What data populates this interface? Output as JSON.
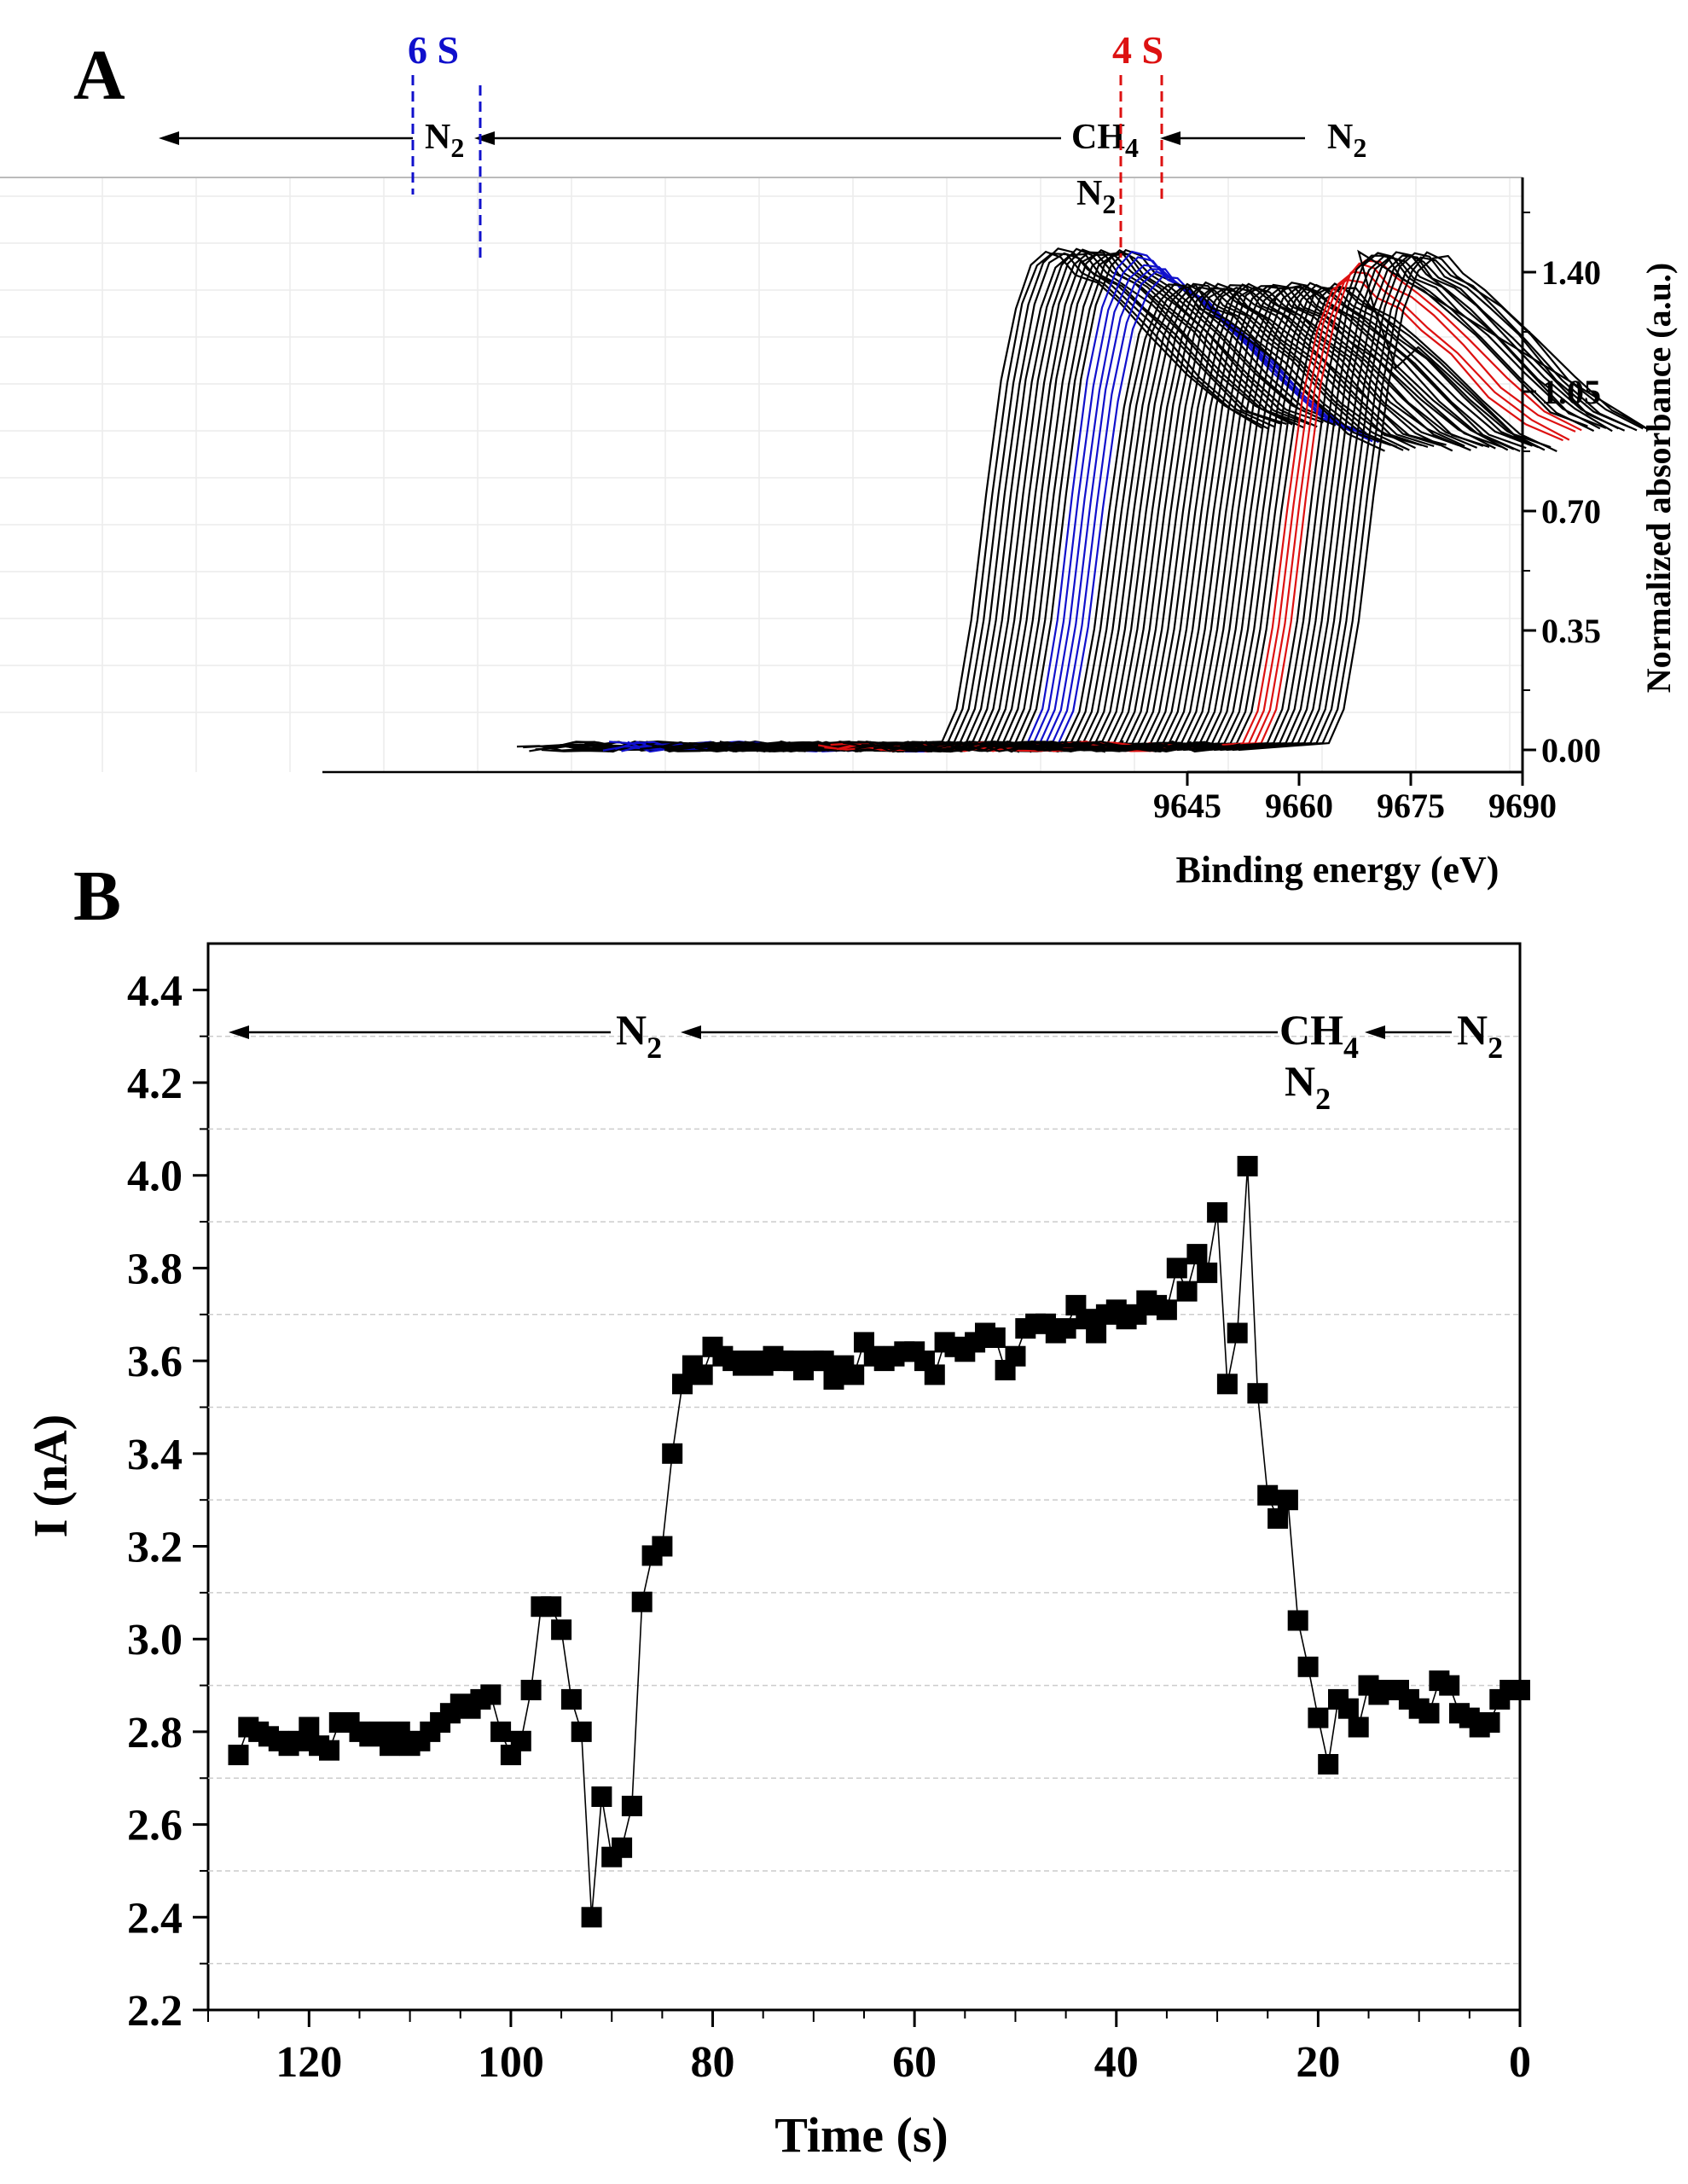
{
  "chart_data": [
    {
      "panel": "A",
      "type": "line",
      "xlabel": "Binding energy (eV)",
      "ylabel": "Normalized absorbance (a.u.)",
      "x_ticks": [
        "9645",
        "9660",
        "9675",
        "9690"
      ],
      "y_ticks": [
        "0.00",
        "0.35",
        "0.70",
        "1.05",
        "1.40"
      ],
      "xlim": [
        9645,
        9690
      ],
      "ylim": [
        0,
        1.65
      ],
      "waterfall": true,
      "spectrum_count": 64,
      "edge_x_range": [
        9600,
        9652
      ],
      "curve_template": {
        "x_rel": [
          0,
          12,
          14,
          16,
          18,
          20,
          22,
          24,
          26,
          28,
          30,
          33,
          36,
          40,
          45,
          50,
          55
        ],
        "y": [
          0.0,
          0.02,
          0.12,
          0.38,
          0.75,
          1.08,
          1.3,
          1.42,
          1.46,
          1.45,
          1.4,
          1.36,
          1.3,
          1.22,
          1.1,
          1.0,
          0.95
        ]
      },
      "highlight_groups": [
        {
          "label": "6 S",
          "color": "#1010cc",
          "indices": [
            14,
            15,
            16,
            17,
            18,
            19
          ]
        },
        {
          "label": "4 S",
          "color": "#dd1111",
          "indices": [
            49,
            50,
            51,
            52
          ]
        }
      ],
      "gas_annotations": [
        "N2",
        "CH4",
        "N2",
        "N2"
      ],
      "panel_label": "A",
      "colors": {
        "default": "#000000",
        "blue": "#1010cc",
        "red": "#dd1111"
      }
    },
    {
      "panel": "B",
      "type": "scatter",
      "connected": true,
      "xlabel": "Time (s)",
      "ylabel": "I (nA)",
      "xlim": [
        130,
        0
      ],
      "ylim": [
        2.2,
        4.5
      ],
      "x_ticks": [
        "120",
        "100",
        "80",
        "60",
        "40",
        "20",
        "0"
      ],
      "y_ticks": [
        "2.2",
        "2.4",
        "2.6",
        "2.8",
        "3.0",
        "3.2",
        "3.4",
        "3.6",
        "3.8",
        "4.0",
        "4.2",
        "4.4"
      ],
      "grid": "y-minor-dashed",
      "panel_label": "B",
      "gas_annotations": [
        "N2",
        "N2",
        "CH4",
        "N2",
        "N2"
      ],
      "x": [
        127,
        126,
        125,
        124,
        123,
        122,
        121,
        120,
        119,
        118,
        117,
        116,
        115,
        114,
        113,
        112,
        111,
        110,
        109,
        108,
        107,
        106,
        105,
        104,
        103,
        102,
        101,
        100,
        99,
        98,
        97,
        96,
        95,
        94,
        93,
        92,
        91,
        90,
        89,
        88,
        87,
        86,
        85,
        84,
        83,
        82,
        81,
        80,
        79,
        78,
        77,
        76,
        75,
        74,
        73,
        72,
        71,
        70,
        69,
        68,
        67,
        66,
        65,
        64,
        63,
        62,
        61,
        60,
        59,
        58,
        57,
        56,
        55,
        54,
        53,
        52,
        51,
        50,
        49,
        48,
        47,
        46,
        45,
        44,
        43,
        42,
        41,
        40,
        39,
        38,
        37,
        36,
        35,
        34,
        33,
        32,
        31,
        30,
        29,
        28,
        27,
        26,
        25,
        24,
        23,
        22,
        21,
        20,
        19,
        18,
        17,
        16,
        15,
        14,
        13,
        12,
        11,
        10,
        9,
        8,
        7,
        6,
        5,
        4,
        3,
        2,
        1,
        0
      ],
      "y": [
        2.75,
        2.81,
        2.8,
        2.79,
        2.78,
        2.77,
        2.78,
        2.81,
        2.77,
        2.76,
        2.82,
        2.82,
        2.8,
        2.79,
        2.8,
        2.77,
        2.8,
        2.77,
        2.78,
        2.8,
        2.82,
        2.84,
        2.86,
        2.85,
        2.87,
        2.88,
        2.8,
        2.75,
        2.78,
        2.89,
        3.07,
        3.07,
        3.02,
        2.87,
        2.8,
        2.4,
        2.66,
        2.53,
        2.55,
        2.64,
        3.08,
        3.18,
        3.2,
        3.4,
        3.55,
        3.59,
        3.57,
        3.63,
        3.61,
        3.6,
        3.59,
        3.6,
        3.59,
        3.61,
        3.6,
        3.6,
        3.58,
        3.6,
        3.6,
        3.56,
        3.59,
        3.57,
        3.64,
        3.61,
        3.6,
        3.61,
        3.62,
        3.62,
        3.6,
        3.57,
        3.64,
        3.63,
        3.62,
        3.64,
        3.66,
        3.65,
        3.58,
        3.61,
        3.67,
        3.68,
        3.68,
        3.66,
        3.67,
        3.72,
        3.69,
        3.66,
        3.7,
        3.71,
        3.69,
        3.7,
        3.73,
        3.72,
        3.71,
        3.8,
        3.75,
        3.83,
        3.79,
        3.92,
        3.55,
        3.66,
        4.02,
        3.53,
        3.31,
        3.26,
        3.3,
        3.04,
        2.94,
        2.83,
        2.73,
        2.87,
        2.85,
        2.81,
        2.9,
        2.88,
        2.89,
        2.89,
        2.87,
        2.85,
        2.84,
        2.91,
        2.9,
        2.84,
        2.83,
        2.81,
        2.82,
        2.87,
        2.89,
        2.89
      ],
      "colors": {
        "marker": "#000000",
        "line": "#000000"
      }
    }
  ],
  "labels": {
    "panel_a": "A",
    "panel_b": "B",
    "a_six_s": "6 S",
    "a_four_s": "4 S",
    "a_ch4_base": "CH",
    "a_ch4_sub": "4",
    "a_n2_base": "N",
    "a_n2_sub": "2",
    "b_ch4_base": "CH",
    "b_ch4_sub": "4",
    "b_n2_base": "N",
    "b_n2_sub": "2"
  }
}
